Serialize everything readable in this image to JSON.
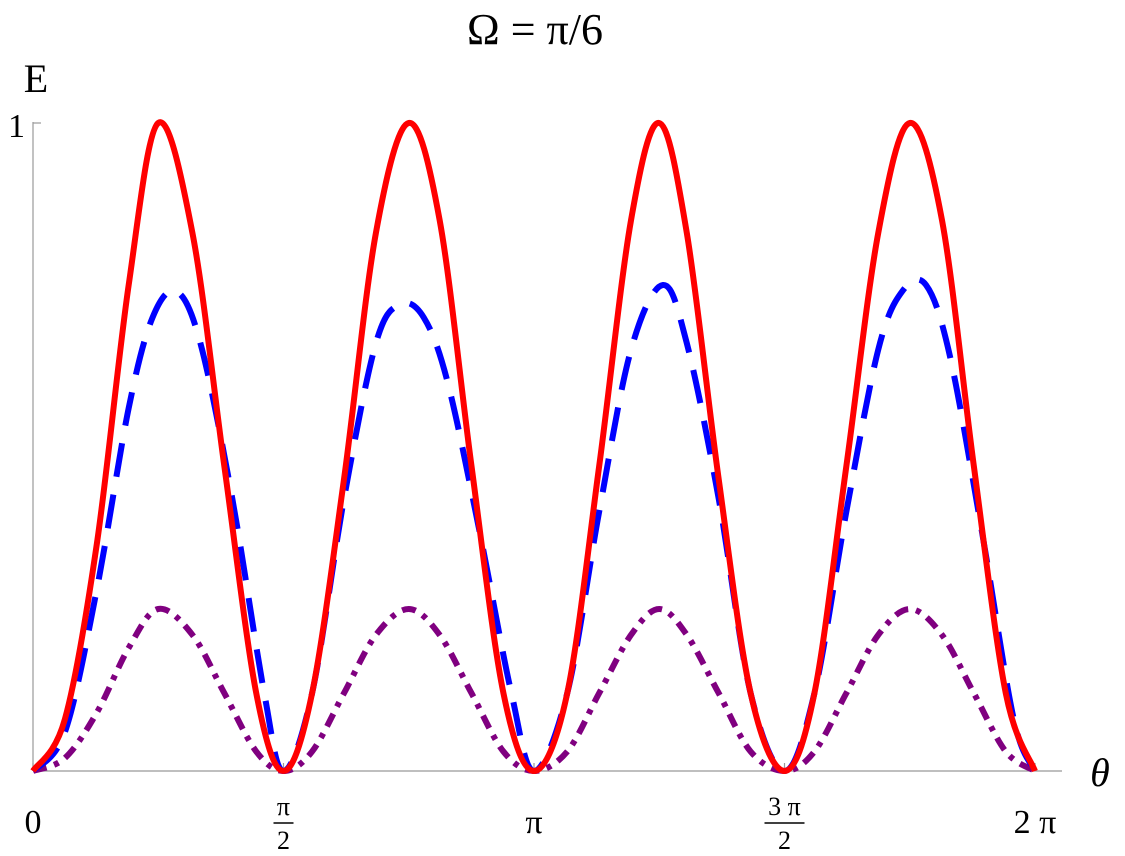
{
  "chart_data": {
    "type": "line",
    "title": "Ω = π/6",
    "xlabel": "θ",
    "ylabel": "E",
    "xlim": [
      0,
      6.283185307
    ],
    "ylim": [
      0,
      1
    ],
    "x_ticks": [
      {
        "value": 0,
        "label": "0"
      },
      {
        "value": 1.5707963,
        "num": "π",
        "den": "2"
      },
      {
        "value": 3.1415927,
        "label": "π"
      },
      {
        "value": 4.712389,
        "num": "3 π",
        "den": "2"
      },
      {
        "value": 6.2831853,
        "label": "2 π"
      }
    ],
    "y_ticks": [
      {
        "value": 1,
        "label": "1"
      }
    ],
    "grid": false,
    "legend": "none",
    "series": [
      {
        "style": "solid",
        "color": "#ff0000",
        "points": [
          [
            0,
            0
          ],
          [
            0.2,
            0.08
          ],
          [
            0.4,
            0.35
          ],
          [
            0.6,
            0.75
          ],
          [
            0.785,
            1.0
          ],
          [
            1.0,
            0.83
          ],
          [
            1.2,
            0.47
          ],
          [
            1.4,
            0.12
          ],
          [
            1.571,
            0.0
          ],
          [
            1.75,
            0.12
          ],
          [
            1.95,
            0.45
          ],
          [
            2.15,
            0.83
          ],
          [
            2.356,
            1.0
          ],
          [
            2.55,
            0.85
          ],
          [
            2.75,
            0.47
          ],
          [
            2.95,
            0.12
          ],
          [
            3.142,
            0.0
          ],
          [
            3.35,
            0.12
          ],
          [
            3.55,
            0.47
          ],
          [
            3.75,
            0.85
          ],
          [
            3.927,
            1.0
          ],
          [
            4.1,
            0.83
          ],
          [
            4.3,
            0.45
          ],
          [
            4.5,
            0.12
          ],
          [
            4.712,
            0.0
          ],
          [
            4.9,
            0.12
          ],
          [
            5.1,
            0.47
          ],
          [
            5.3,
            0.83
          ],
          [
            5.498,
            1.0
          ],
          [
            5.7,
            0.85
          ],
          [
            5.9,
            0.47
          ],
          [
            6.1,
            0.12
          ],
          [
            6.283,
            0.0
          ]
        ]
      },
      {
        "style": "dashed",
        "color": "#0000ff",
        "points": [
          [
            0,
            0
          ],
          [
            0.2,
            0.06
          ],
          [
            0.4,
            0.28
          ],
          [
            0.6,
            0.56
          ],
          [
            0.75,
            0.7
          ],
          [
            0.9,
            0.74
          ],
          [
            1.05,
            0.66
          ],
          [
            1.25,
            0.42
          ],
          [
            1.45,
            0.12
          ],
          [
            1.571,
            0.0
          ],
          [
            1.75,
            0.12
          ],
          [
            1.95,
            0.42
          ],
          [
            2.15,
            0.66
          ],
          [
            2.3,
            0.72
          ],
          [
            2.45,
            0.7
          ],
          [
            2.6,
            0.6
          ],
          [
            2.8,
            0.37
          ],
          [
            3.0,
            0.12
          ],
          [
            3.142,
            0.0
          ],
          [
            3.35,
            0.12
          ],
          [
            3.55,
            0.4
          ],
          [
            3.75,
            0.65
          ],
          [
            3.95,
            0.75
          ],
          [
            4.1,
            0.66
          ],
          [
            4.3,
            0.42
          ],
          [
            4.5,
            0.12
          ],
          [
            4.712,
            0.0
          ],
          [
            4.9,
            0.12
          ],
          [
            5.1,
            0.4
          ],
          [
            5.3,
            0.65
          ],
          [
            5.45,
            0.74
          ],
          [
            5.6,
            0.75
          ],
          [
            5.75,
            0.64
          ],
          [
            5.95,
            0.37
          ],
          [
            6.15,
            0.08
          ],
          [
            6.283,
            0.0
          ]
        ]
      },
      {
        "style": "dashdot",
        "color": "#800080",
        "points": [
          [
            0,
            0
          ],
          [
            0.2,
            0.02
          ],
          [
            0.4,
            0.09
          ],
          [
            0.6,
            0.19
          ],
          [
            0.785,
            0.25
          ],
          [
            1.0,
            0.21
          ],
          [
            1.2,
            0.12
          ],
          [
            1.4,
            0.03
          ],
          [
            1.571,
            0.0
          ],
          [
            1.75,
            0.03
          ],
          [
            1.95,
            0.12
          ],
          [
            2.15,
            0.21
          ],
          [
            2.356,
            0.25
          ],
          [
            2.55,
            0.21
          ],
          [
            2.75,
            0.12
          ],
          [
            2.95,
            0.03
          ],
          [
            3.142,
            0.0
          ],
          [
            3.35,
            0.03
          ],
          [
            3.55,
            0.12
          ],
          [
            3.75,
            0.21
          ],
          [
            3.927,
            0.25
          ],
          [
            4.1,
            0.21
          ],
          [
            4.3,
            0.12
          ],
          [
            4.5,
            0.03
          ],
          [
            4.712,
            0.0
          ],
          [
            4.9,
            0.03
          ],
          [
            5.1,
            0.12
          ],
          [
            5.3,
            0.21
          ],
          [
            5.498,
            0.25
          ],
          [
            5.7,
            0.21
          ],
          [
            5.9,
            0.12
          ],
          [
            6.1,
            0.03
          ],
          [
            6.283,
            0.0
          ]
        ]
      }
    ]
  }
}
